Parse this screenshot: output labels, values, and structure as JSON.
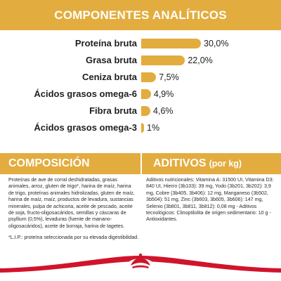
{
  "sections": {
    "analytical_title": "COMPONENTES ANALÍTICOS",
    "composition_title": "COMPOSICIÓN",
    "additives_title": "ADITIVOS",
    "additives_unit": "(por kg)"
  },
  "colors": {
    "accent": "#e3ac3e",
    "footer_red": "#d0142c"
  },
  "chart_data": {
    "type": "bar",
    "orientation": "horizontal",
    "categories": [
      "Proteína bruta",
      "Grasa bruta",
      "Ceniza bruta",
      "Ácidos grasos omega-6",
      "Fibra bruta",
      "Ácidos grasos omega-3"
    ],
    "values": [
      30.0,
      22.0,
      7.5,
      4.9,
      4.6,
      1
    ],
    "value_labels": [
      "30,0%",
      "22,0%",
      "7,5%",
      "4,9%",
      "4,6%",
      "1%"
    ],
    "unit": "%",
    "xlim": [
      0,
      30
    ]
  },
  "composition": {
    "text": "Proteínas de ave de corral deshidratadas, grasas animales, arroz, gluten de trigo*, harina de maíz, harina de trigo, proteínas animales hidrolizadas, gluten de maíz, harina de maíz, maíz, productos de levadura, sustancias minerales, pulpa de achicoria, aceite de pescado, aceite de soja, fructo-oligosacáridos, semillas y cáscaras de psyllium (0,5%), levaduras (fuente de manano-oligosacáridos), aceite de borraja, harina de tagetes.",
    "note": "*L.I.P.: proteína seleccionada por su elevada digestibilidad."
  },
  "additives": {
    "text": "Aditivos nutricionales: Vitamina A: 31500 UI, Vitamina D3: 840 UI, Hierro (3b103): 39 mg, Yodo (3b201, 3b202): 3,9 mg, Cobre (3b405, 3b406): 12 mg, Manganeso (3b502, 3b504): 51 mg, Zinc (3b603, 3b605, 3b606): 147 mg, Selenio (3b801, 3b811, 3b812): 0,08 mg - Aditivos tecnológicos: Clinoptilolita de origen sedimentario: 10 g - Antioxidantes."
  },
  "logo": {
    "name": "royal-canin-crown-logo"
  }
}
